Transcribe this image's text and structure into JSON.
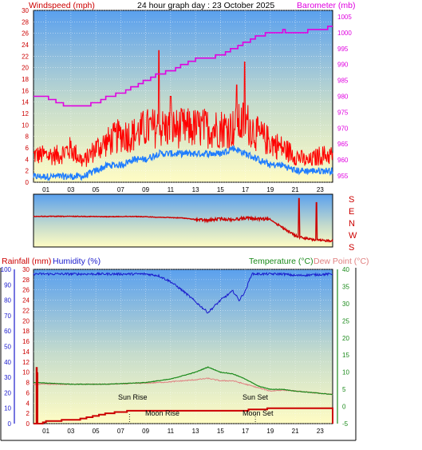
{
  "header": {
    "windspeed_label": "Windspeed (mph)",
    "title": "24 hour graph day : 23 October 2025",
    "barometer_label": "Barometer (mb)"
  },
  "bottom_header": {
    "rainfall_label": "Rainfall (mm)",
    "humidity_label": "Humidity (%)",
    "temperature_label": "Temperature (°C)",
    "dewpoint_label": "Dew Point (°C)"
  },
  "annotations": {
    "sunrise": "Sun Rise",
    "sunset": "Sun Set",
    "moonrise": "Moon Rise",
    "moonset": "Moon Set"
  },
  "colors": {
    "wind_red": "#ff0000",
    "wind_blue": "#1e7cff",
    "barometer": "#e000e0",
    "humidity": "#1a1acc",
    "temperature": "#1a8a1a",
    "dewpoint": "#e08080",
    "rainfall": "#cc0000",
    "direction": "#cc0000"
  },
  "chart_data": [
    {
      "type": "line",
      "title": "24 hour graph day : 23 October 2025",
      "xlabel": "",
      "x_ticks": [
        "01",
        "03",
        "05",
        "07",
        "09",
        "11",
        "13",
        "15",
        "17",
        "19",
        "21",
        "23"
      ],
      "y_left": {
        "label": "Windspeed (mph)",
        "ticks": [
          0,
          2,
          4,
          6,
          8,
          10,
          12,
          14,
          16,
          18,
          20,
          22,
          24,
          26,
          28,
          30
        ],
        "range": [
          0,
          30
        ]
      },
      "y_right": {
        "label": "Barometer (mb)",
        "ticks": [
          955,
          960,
          965,
          970,
          975,
          980,
          985,
          990,
          995,
          1000,
          1005
        ],
        "range": [
          953,
          1007
        ]
      },
      "series": [
        {
          "name": "Windspeed (mph)",
          "axis": "left",
          "style": "gust",
          "x": [
            0,
            1,
            2,
            3,
            4,
            5,
            6,
            7,
            8,
            9,
            10,
            11,
            12,
            13,
            14,
            15,
            16,
            17,
            18,
            19,
            20,
            21,
            22,
            23,
            24
          ],
          "values": [
            4,
            4,
            4,
            5,
            3,
            5,
            6,
            7,
            7,
            8,
            8,
            8,
            8,
            8,
            8,
            8,
            8,
            9,
            7,
            6,
            5,
            4,
            3,
            4,
            4
          ]
        },
        {
          "name": "Windspeed (mph)",
          "axis": "left",
          "style": "average",
          "x": [
            0,
            1,
            2,
            3,
            4,
            5,
            6,
            7,
            8,
            9,
            10,
            11,
            12,
            13,
            14,
            15,
            16,
            17,
            18,
            19,
            20,
            21,
            22,
            23,
            24
          ],
          "values": [
            1,
            1,
            1,
            1,
            1,
            2,
            3,
            3,
            4,
            4,
            5,
            5,
            5,
            5,
            5,
            5,
            6,
            5,
            4,
            3,
            3,
            2,
            2,
            2,
            2
          ]
        },
        {
          "name": "Barometer (mb)",
          "axis": "right",
          "x": [
            0,
            1,
            2,
            3,
            4,
            5,
            6,
            7,
            8,
            9,
            10,
            11,
            12,
            13,
            14,
            15,
            16,
            17,
            18,
            19,
            20,
            21,
            22,
            23,
            24
          ],
          "values": [
            980,
            979.5,
            978,
            976.5,
            977,
            978,
            980,
            981,
            983,
            985,
            987,
            988,
            990,
            991.5,
            992,
            993,
            995,
            997,
            999,
            1000,
            1000.5,
            1000,
            1000.5,
            1001,
            1002
          ]
        }
      ]
    },
    {
      "type": "line",
      "title": "",
      "direction_labels": [
        "S",
        "E",
        "N",
        "W",
        "S"
      ],
      "series": [
        {
          "name": "",
          "x": [
            0,
            2,
            4,
            6,
            8,
            10,
            12,
            13,
            14,
            15,
            16,
            17,
            18,
            19,
            20,
            21,
            22,
            23,
            24
          ],
          "values": [
            180,
            180,
            180,
            182,
            180,
            185,
            190,
            200,
            205,
            195,
            200,
            190,
            195,
            200,
            250,
            300,
            320,
            330,
            330
          ]
        }
      ]
    },
    {
      "type": "line",
      "title": "",
      "x_ticks": [
        "01",
        "03",
        "05",
        "07",
        "09",
        "11",
        "13",
        "15",
        "17",
        "19",
        "21",
        "23"
      ],
      "y_left_rain": {
        "label": "Rainfall (mm)",
        "ticks": [
          0,
          2,
          4,
          6,
          8,
          10,
          12,
          14,
          16,
          18,
          20,
          22,
          24,
          26,
          28,
          30
        ],
        "range": [
          0,
          30
        ]
      },
      "y_left_humidity": {
        "label": "Humidity (%)",
        "ticks": [
          0,
          10,
          20,
          30,
          40,
          50,
          60,
          70,
          80,
          90,
          100
        ],
        "range": [
          0,
          100
        ]
      },
      "y_right": {
        "label": "Temperature (°C)",
        "ticks": [
          -5,
          0,
          5,
          10,
          15,
          20,
          25,
          30,
          35,
          40
        ],
        "range": [
          -5,
          40
        ]
      },
      "series": [
        {
          "name": "Humidity (%)",
          "axis": "humidity",
          "x": [
            0,
            9,
            10,
            11,
            12,
            13,
            14,
            15,
            16,
            16.5,
            17,
            17.5,
            18,
            20,
            21,
            24
          ],
          "values": [
            97,
            97,
            96,
            92,
            86,
            79,
            72,
            80,
            86,
            80,
            86,
            97,
            97,
            97,
            96,
            97
          ]
        },
        {
          "name": "Temperature (°C)",
          "axis": "right",
          "x": [
            0,
            3,
            6,
            9,
            11,
            12,
            13,
            14,
            15,
            16,
            17,
            18,
            19,
            20,
            21,
            24
          ],
          "values": [
            7,
            6.5,
            6.5,
            7,
            8,
            9,
            10,
            11.5,
            10,
            9.5,
            8,
            6,
            5,
            5,
            4.5,
            3.5
          ]
        },
        {
          "name": "Dew Point (°C)",
          "axis": "right",
          "x": [
            0,
            3,
            6,
            9,
            11,
            12,
            13,
            14,
            15,
            16,
            17,
            18,
            19,
            20,
            21,
            24
          ],
          "values": [
            6.5,
            6.5,
            6.5,
            6.8,
            7.2,
            7.5,
            7.8,
            8.2,
            7.5,
            7.5,
            6.5,
            5.5,
            4.5,
            4.8,
            4.5,
            3.5
          ]
        },
        {
          "name": "Rainfall (mm)",
          "axis": "rain",
          "x": [
            0,
            0.5,
            1,
            3,
            4,
            5,
            6,
            7,
            8,
            9,
            14,
            17,
            18,
            19,
            24
          ],
          "values": [
            0,
            0,
            0.5,
            0.7,
            1,
            1.5,
            2,
            2.3,
            2.5,
            2.6,
            2.6,
            2.6,
            2.7,
            3,
            3
          ]
        }
      ]
    }
  ]
}
